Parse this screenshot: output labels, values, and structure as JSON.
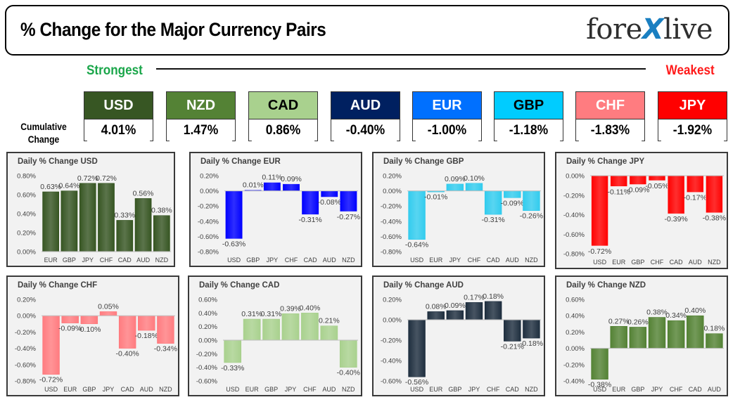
{
  "header": {
    "title": "% Change for the Major Currency Pairs",
    "logo_text_before": "fore",
    "logo_text_x": "X",
    "logo_text_after": "live"
  },
  "ranking": {
    "strongest_label": "Strongest",
    "weakest_label": "Weakest",
    "cumulative_label_line1": "Cumulative",
    "cumulative_label_line2": "Change",
    "currencies": [
      {
        "name": "USD",
        "value": "4.01%",
        "color": "#375623",
        "text_color": "#ffffff"
      },
      {
        "name": "NZD",
        "value": "1.47%",
        "color": "#548235",
        "text_color": "#ffffff"
      },
      {
        "name": "CAD",
        "value": "0.86%",
        "color": "#a9d18e",
        "text_color": "#000000"
      },
      {
        "name": "AUD",
        "value": "-0.40%",
        "color": "#002060",
        "text_color": "#ffffff"
      },
      {
        "name": "EUR",
        "value": "-1.00%",
        "color": "#0070ff",
        "text_color": "#ffffff"
      },
      {
        "name": "GBP",
        "value": "-1.18%",
        "color": "#00ccff",
        "text_color": "#000000"
      },
      {
        "name": "CHF",
        "value": "-1.83%",
        "color": "#ff7c80",
        "text_color": "#ffffff"
      },
      {
        "name": "JPY",
        "value": "-1.92%",
        "color": "#ff0000",
        "text_color": "#ffffff"
      }
    ]
  },
  "chart_data": [
    {
      "type": "bar",
      "title": "Daily % Change USD",
      "base": "USD",
      "color": "#375623",
      "categories": [
        "EUR",
        "GBP",
        "JPY",
        "CHF",
        "CAD",
        "AUD",
        "NZD"
      ],
      "values": [
        0.63,
        0.64,
        0.72,
        0.72,
        0.33,
        0.56,
        0.38
      ],
      "labels": [
        "0.63%",
        "0.64%",
        "0.72%",
        "0.72%",
        "0.33%",
        "0.56%",
        "0.38%"
      ],
      "ylim": [
        0.0,
        0.8
      ],
      "ticks": [
        0.0,
        0.2,
        0.4,
        0.6,
        0.8
      ],
      "tick_labels": [
        "0.00%",
        "0.20%",
        "0.40%",
        "0.60%",
        "0.80%"
      ]
    },
    {
      "type": "bar",
      "title": "Daily % Change EUR",
      "base": "EUR",
      "color": "#0000ff",
      "categories": [
        "USD",
        "GBP",
        "JPY",
        "CHF",
        "CAD",
        "AUD",
        "NZD"
      ],
      "values": [
        -0.63,
        0.01,
        0.11,
        0.09,
        -0.31,
        -0.08,
        -0.27
      ],
      "labels": [
        "-0.63%",
        "0.01%",
        "0.11%",
        "0.09%",
        "-0.31%",
        "-0.08%",
        "-0.27%"
      ],
      "ylim": [
        -0.8,
        0.2
      ],
      "ticks": [
        0.2,
        0.0,
        -0.2,
        -0.4,
        -0.6,
        -0.8
      ],
      "tick_labels": [
        "0.20%",
        "0.00%",
        "-0.20%",
        "-0.40%",
        "-0.60%",
        "-0.80%"
      ]
    },
    {
      "type": "bar",
      "title": "Daily % Change GBP",
      "base": "GBP",
      "color": "#33ccee",
      "categories": [
        "USD",
        "EUR",
        "JPY",
        "CHF",
        "CAD",
        "AUD",
        "NZD"
      ],
      "values": [
        -0.64,
        -0.01,
        0.09,
        0.1,
        -0.31,
        -0.09,
        -0.26
      ],
      "labels": [
        "-0.64%",
        "-0.01%",
        "0.09%",
        "0.10%",
        "-0.31%",
        "-0.09%",
        "-0.26%"
      ],
      "ylim": [
        -0.8,
        0.2
      ],
      "ticks": [
        0.2,
        0.0,
        -0.2,
        -0.4,
        -0.6,
        -0.8
      ],
      "tick_labels": [
        "0.20%",
        "0.00%",
        "-0.20%",
        "-0.40%",
        "-0.60%",
        "-0.80%"
      ]
    },
    {
      "type": "bar",
      "title": "Daily % Change JPY",
      "base": "JPY",
      "color": "#ff0000",
      "categories": [
        "USD",
        "EUR",
        "GBP",
        "CHF",
        "CAD",
        "AUD",
        "NZD"
      ],
      "values": [
        -0.72,
        -0.11,
        -0.09,
        -0.05,
        -0.39,
        -0.17,
        -0.38
      ],
      "labels": [
        "-0.72%",
        "-0.11%",
        "-0.09%",
        "-0.05%",
        "-0.39%",
        "-0.17%",
        "-0.38%"
      ],
      "ylim": [
        -0.8,
        0.0
      ],
      "ticks": [
        0.0,
        -0.2,
        -0.4,
        -0.6,
        -0.8
      ],
      "tick_labels": [
        "0.00%",
        "-0.20%",
        "-0.40%",
        "-0.60%",
        "-0.80%"
      ]
    },
    {
      "type": "bar",
      "title": "Daily % Change CHF",
      "base": "CHF",
      "color": "#ff7c80",
      "categories": [
        "USD",
        "EUR",
        "GBP",
        "JPY",
        "CAD",
        "AUD",
        "NZD"
      ],
      "values": [
        -0.72,
        -0.09,
        -0.1,
        0.05,
        -0.4,
        -0.18,
        -0.34
      ],
      "labels": [
        "-0.72%",
        "-0.09%",
        "-0.10%",
        "0.05%",
        "-0.40%",
        "-0.18%",
        "-0.34%"
      ],
      "ylim": [
        -0.8,
        0.2
      ],
      "ticks": [
        0.2,
        0.0,
        -0.2,
        -0.4,
        -0.6,
        -0.8
      ],
      "tick_labels": [
        "0.20%",
        "0.00%",
        "-0.20%",
        "-0.40%",
        "-0.60%",
        "-0.80%"
      ]
    },
    {
      "type": "bar",
      "title": "Daily % Change CAD",
      "base": "CAD",
      "color": "#a9d18e",
      "categories": [
        "USD",
        "EUR",
        "GBP",
        "JPY",
        "CHF",
        "AUD",
        "NZD"
      ],
      "values": [
        -0.33,
        0.31,
        0.31,
        0.39,
        0.4,
        0.21,
        -0.4
      ],
      "labels": [
        "-0.33%",
        "0.31%",
        "0.31%",
        "0.39%",
        "0.40%",
        "0.21%",
        "-0.40%"
      ],
      "ylim": [
        -0.6,
        0.6
      ],
      "ticks": [
        0.6,
        0.4,
        0.2,
        0.0,
        -0.2,
        -0.4,
        -0.6
      ],
      "tick_labels": [
        "0.60%",
        "0.40%",
        "0.20%",
        "0.00%",
        "-0.20%",
        "-0.40%",
        "-0.60%"
      ]
    },
    {
      "type": "bar",
      "title": "Daily % Change AUD",
      "base": "AUD",
      "color": "#1f2f3f",
      "categories": [
        "USD",
        "EUR",
        "GBP",
        "JPY",
        "CHF",
        "CAD",
        "NZD"
      ],
      "values": [
        -0.56,
        0.08,
        0.09,
        0.17,
        0.18,
        -0.21,
        -0.18
      ],
      "labels": [
        "-0.56%",
        "0.08%",
        "0.09%",
        "0.17%",
        "0.18%",
        "-0.21%",
        "-0.18%"
      ],
      "ylim": [
        -0.6,
        0.2
      ],
      "ticks": [
        0.2,
        0.0,
        -0.2,
        -0.4,
        -0.6
      ],
      "tick_labels": [
        "0.20%",
        "0.00%",
        "-0.20%",
        "-0.40%",
        "-0.60%"
      ]
    },
    {
      "type": "bar",
      "title": "Daily % Change NZD",
      "base": "NZD",
      "color": "#548235",
      "categories": [
        "USD",
        "EUR",
        "GBP",
        "JPY",
        "CHF",
        "CAD",
        "AUD"
      ],
      "values": [
        -0.38,
        0.27,
        0.26,
        0.38,
        0.34,
        0.4,
        0.18
      ],
      "labels": [
        "-0.38%",
        "0.27%",
        "0.26%",
        "0.38%",
        "0.34%",
        "0.40%",
        "0.18%"
      ],
      "ylim": [
        -0.4,
        0.6
      ],
      "ticks": [
        0.6,
        0.4,
        0.2,
        0.0,
        -0.2,
        -0.4
      ],
      "tick_labels": [
        "0.60%",
        "0.40%",
        "0.20%",
        "0.00%",
        "-0.20%",
        "-0.40%"
      ]
    }
  ]
}
